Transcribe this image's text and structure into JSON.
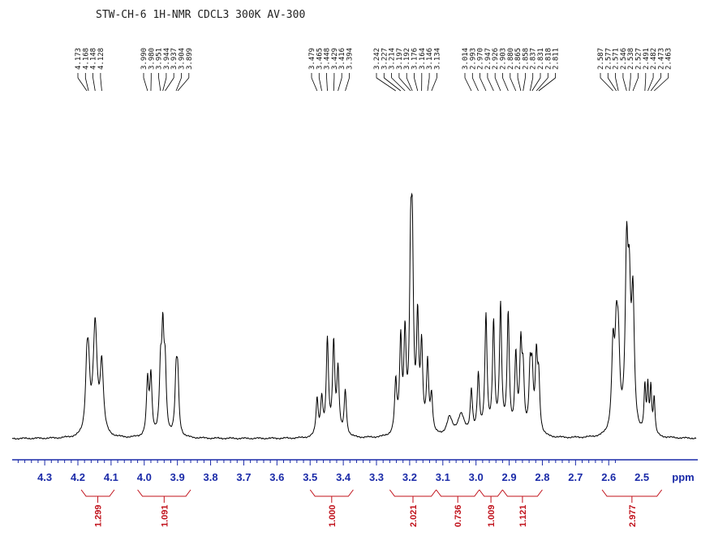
{
  "chart_data": {
    "type": "line",
    "title": "STW-CH-6 1H-NMR CDCL3 300K AV-300",
    "xlabel": "ppm",
    "xlim": [
      4.38,
      2.42
    ],
    "xticks": [
      "4.3",
      "4.2",
      "4.1",
      "4.0",
      "3.9",
      "3.8",
      "3.7",
      "3.6",
      "3.5",
      "3.4",
      "3.3",
      "3.2",
      "3.1",
      "3.0",
      "2.9",
      "2.8",
      "2.7",
      "2.6",
      "2.5"
    ],
    "peak_labels": [
      [
        "4.173",
        "4.168",
        "4.148",
        "4.128"
      ],
      [
        "3.990",
        "3.980",
        "3.951",
        "3.944",
        "3.937",
        "3.904",
        "3.899"
      ],
      [
        "3.479",
        "3.465",
        "3.448",
        "3.429",
        "3.416",
        "3.394"
      ],
      [
        "3.242",
        "3.227",
        "3.214",
        "3.197",
        "3.192",
        "3.176",
        "3.164",
        "3.146",
        "3.134"
      ],
      [
        "3.014",
        "2.993",
        "2.970",
        "2.947",
        "2.926",
        "2.903",
        "2.880",
        "2.865",
        "2.858",
        "2.837",
        "2.831",
        "2.818",
        "2.811"
      ],
      [
        "2.587",
        "2.577",
        "2.571",
        "2.546",
        "2.538",
        "2.527",
        "2.491",
        "2.482",
        "2.473",
        "2.463"
      ]
    ],
    "integrals": [
      {
        "label": "1.299",
        "from": 4.19,
        "to": 4.09
      },
      {
        "label": "1.091",
        "from": 4.02,
        "to": 3.86
      },
      {
        "label": "1.000",
        "from": 3.5,
        "to": 3.37
      },
      {
        "label": "2.021",
        "from": 3.26,
        "to": 3.12
      },
      {
        "label": "0.736",
        "from": 3.12,
        "to": 2.99
      },
      {
        "label": "1.009",
        "from": 2.99,
        "to": 2.92
      },
      {
        "label": "1.121",
        "from": 2.92,
        "to": 2.8
      },
      {
        "label": "2.977",
        "from": 2.62,
        "to": 2.44
      }
    ],
    "peaks": [
      {
        "ppm": 4.173,
        "h": 0.32,
        "w": 0.005
      },
      {
        "ppm": 4.168,
        "h": 0.3,
        "w": 0.005
      },
      {
        "ppm": 4.148,
        "h": 0.6,
        "w": 0.007
      },
      {
        "ppm": 4.128,
        "h": 0.38,
        "w": 0.006
      },
      {
        "ppm": 3.99,
        "h": 0.3,
        "w": 0.004
      },
      {
        "ppm": 3.98,
        "h": 0.32,
        "w": 0.004
      },
      {
        "ppm": 3.951,
        "h": 0.33,
        "w": 0.004
      },
      {
        "ppm": 3.944,
        "h": 0.52,
        "w": 0.004
      },
      {
        "ppm": 3.937,
        "h": 0.34,
        "w": 0.004
      },
      {
        "ppm": 3.904,
        "h": 0.3,
        "w": 0.004
      },
      {
        "ppm": 3.899,
        "h": 0.3,
        "w": 0.004
      },
      {
        "ppm": 3.479,
        "h": 0.2,
        "w": 0.004
      },
      {
        "ppm": 3.465,
        "h": 0.2,
        "w": 0.004
      },
      {
        "ppm": 3.448,
        "h": 0.52,
        "w": 0.004
      },
      {
        "ppm": 3.429,
        "h": 0.5,
        "w": 0.004
      },
      {
        "ppm": 3.416,
        "h": 0.35,
        "w": 0.004
      },
      {
        "ppm": 3.394,
        "h": 0.25,
        "w": 0.004
      },
      {
        "ppm": 3.242,
        "h": 0.28,
        "w": 0.004
      },
      {
        "ppm": 3.227,
        "h": 0.5,
        "w": 0.004
      },
      {
        "ppm": 3.214,
        "h": 0.52,
        "w": 0.004
      },
      {
        "ppm": 3.197,
        "h": 0.85,
        "w": 0.004
      },
      {
        "ppm": 3.192,
        "h": 0.9,
        "w": 0.004
      },
      {
        "ppm": 3.176,
        "h": 0.6,
        "w": 0.004
      },
      {
        "ppm": 3.164,
        "h": 0.45,
        "w": 0.004
      },
      {
        "ppm": 3.146,
        "h": 0.38,
        "w": 0.004
      },
      {
        "ppm": 3.134,
        "h": 0.2,
        "w": 0.004
      },
      {
        "ppm": 3.014,
        "h": 0.24,
        "w": 0.004
      },
      {
        "ppm": 2.993,
        "h": 0.32,
        "w": 0.004
      },
      {
        "ppm": 2.97,
        "h": 0.65,
        "w": 0.004
      },
      {
        "ppm": 2.947,
        "h": 0.6,
        "w": 0.004
      },
      {
        "ppm": 2.926,
        "h": 0.7,
        "w": 0.004
      },
      {
        "ppm": 2.903,
        "h": 0.65,
        "w": 0.004
      },
      {
        "ppm": 2.88,
        "h": 0.42,
        "w": 0.004
      },
      {
        "ppm": 2.865,
        "h": 0.45,
        "w": 0.004
      },
      {
        "ppm": 2.858,
        "h": 0.3,
        "w": 0.004
      },
      {
        "ppm": 2.837,
        "h": 0.32,
        "w": 0.004
      },
      {
        "ppm": 2.831,
        "h": 0.3,
        "w": 0.004
      },
      {
        "ppm": 2.818,
        "h": 0.4,
        "w": 0.004
      },
      {
        "ppm": 2.811,
        "h": 0.28,
        "w": 0.004
      },
      {
        "ppm": 3.08,
        "h": 0.1,
        "w": 0.01
      },
      {
        "ppm": 3.045,
        "h": 0.12,
        "w": 0.012
      },
      {
        "ppm": 2.587,
        "h": 0.45,
        "w": 0.005
      },
      {
        "ppm": 2.577,
        "h": 0.45,
        "w": 0.005
      },
      {
        "ppm": 2.571,
        "h": 0.4,
        "w": 0.005
      },
      {
        "ppm": 2.546,
        "h": 0.92,
        "w": 0.005
      },
      {
        "ppm": 2.538,
        "h": 0.65,
        "w": 0.005
      },
      {
        "ppm": 2.527,
        "h": 0.7,
        "w": 0.005
      },
      {
        "ppm": 2.491,
        "h": 0.25,
        "w": 0.003
      },
      {
        "ppm": 2.482,
        "h": 0.25,
        "w": 0.003
      },
      {
        "ppm": 2.473,
        "h": 0.25,
        "w": 0.003
      },
      {
        "ppm": 2.463,
        "h": 0.2,
        "w": 0.003
      }
    ]
  }
}
